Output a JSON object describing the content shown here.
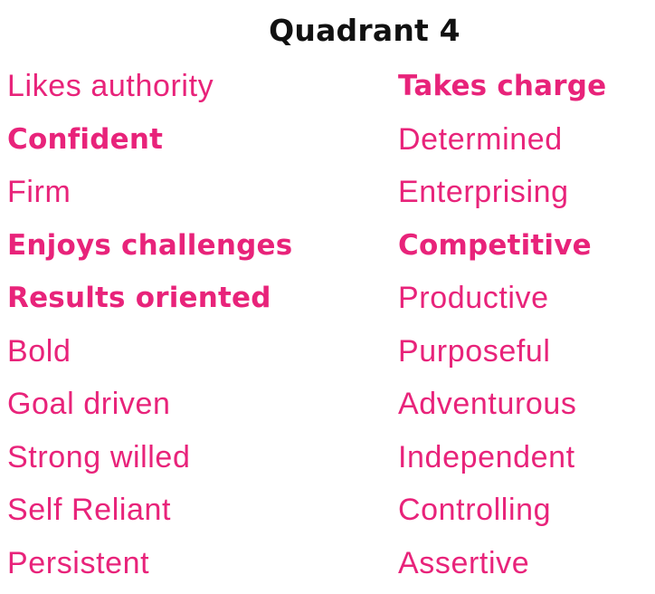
{
  "title": "Quadrant 4",
  "colors": {
    "title": "#111111",
    "trait": "#e8237a",
    "background": "#ffffff"
  },
  "left_column": [
    {
      "text": "Likes authority",
      "bold": false
    },
    {
      "text": "Confident",
      "bold": true
    },
    {
      "text": "Firm",
      "bold": false
    },
    {
      "text": "Enjoys challenges",
      "bold": true
    },
    {
      "text": "Results oriented",
      "bold": true
    },
    {
      "text": "Bold",
      "bold": false
    },
    {
      "text": "Goal driven",
      "bold": false
    },
    {
      "text": "Strong willed",
      "bold": false
    },
    {
      "text": "Self Reliant",
      "bold": false
    },
    {
      "text": "Persistent",
      "bold": false
    }
  ],
  "right_column": [
    {
      "text": "Takes charge",
      "bold": true
    },
    {
      "text": "Determined",
      "bold": false
    },
    {
      "text": "Enterprising",
      "bold": false
    },
    {
      "text": "Competitive",
      "bold": true
    },
    {
      "text": "Productive",
      "bold": false
    },
    {
      "text": "Purposeful",
      "bold": false
    },
    {
      "text": "Adventurous",
      "bold": false
    },
    {
      "text": "Independent",
      "bold": false
    },
    {
      "text": "Controlling",
      "bold": false
    },
    {
      "text": "Assertive",
      "bold": false
    }
  ]
}
